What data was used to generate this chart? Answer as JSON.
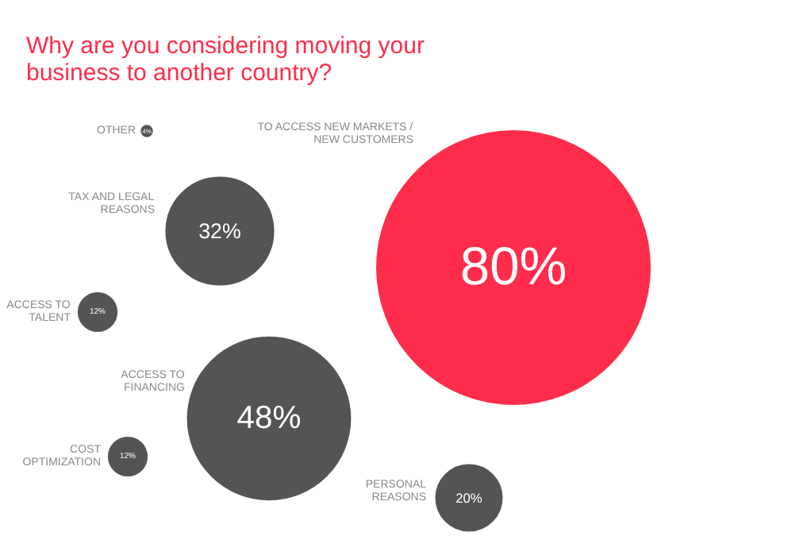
{
  "chart_data": {
    "type": "other",
    "title": "Why are you considering moving your business to another country?",
    "categories": [
      "OTHER",
      "TAX AND LEGAL REASONS",
      "TO ACCESS NEW MARKETS / NEW CUSTOMERS",
      "ACCESS TO TALENT",
      "ACCESS TO FINANCING",
      "COST OPTIMIZATION",
      "PERSONAL REASONS"
    ],
    "values": [
      4,
      32,
      80,
      12,
      48,
      12,
      20
    ],
    "value_labels": [
      "4%",
      "32%",
      "80%",
      "12%",
      "48%",
      "12%",
      "20%"
    ],
    "colors": [
      "#545457",
      "#545457",
      "#ff2d4b",
      "#545457",
      "#545457",
      "#545457",
      "#545457"
    ]
  }
}
